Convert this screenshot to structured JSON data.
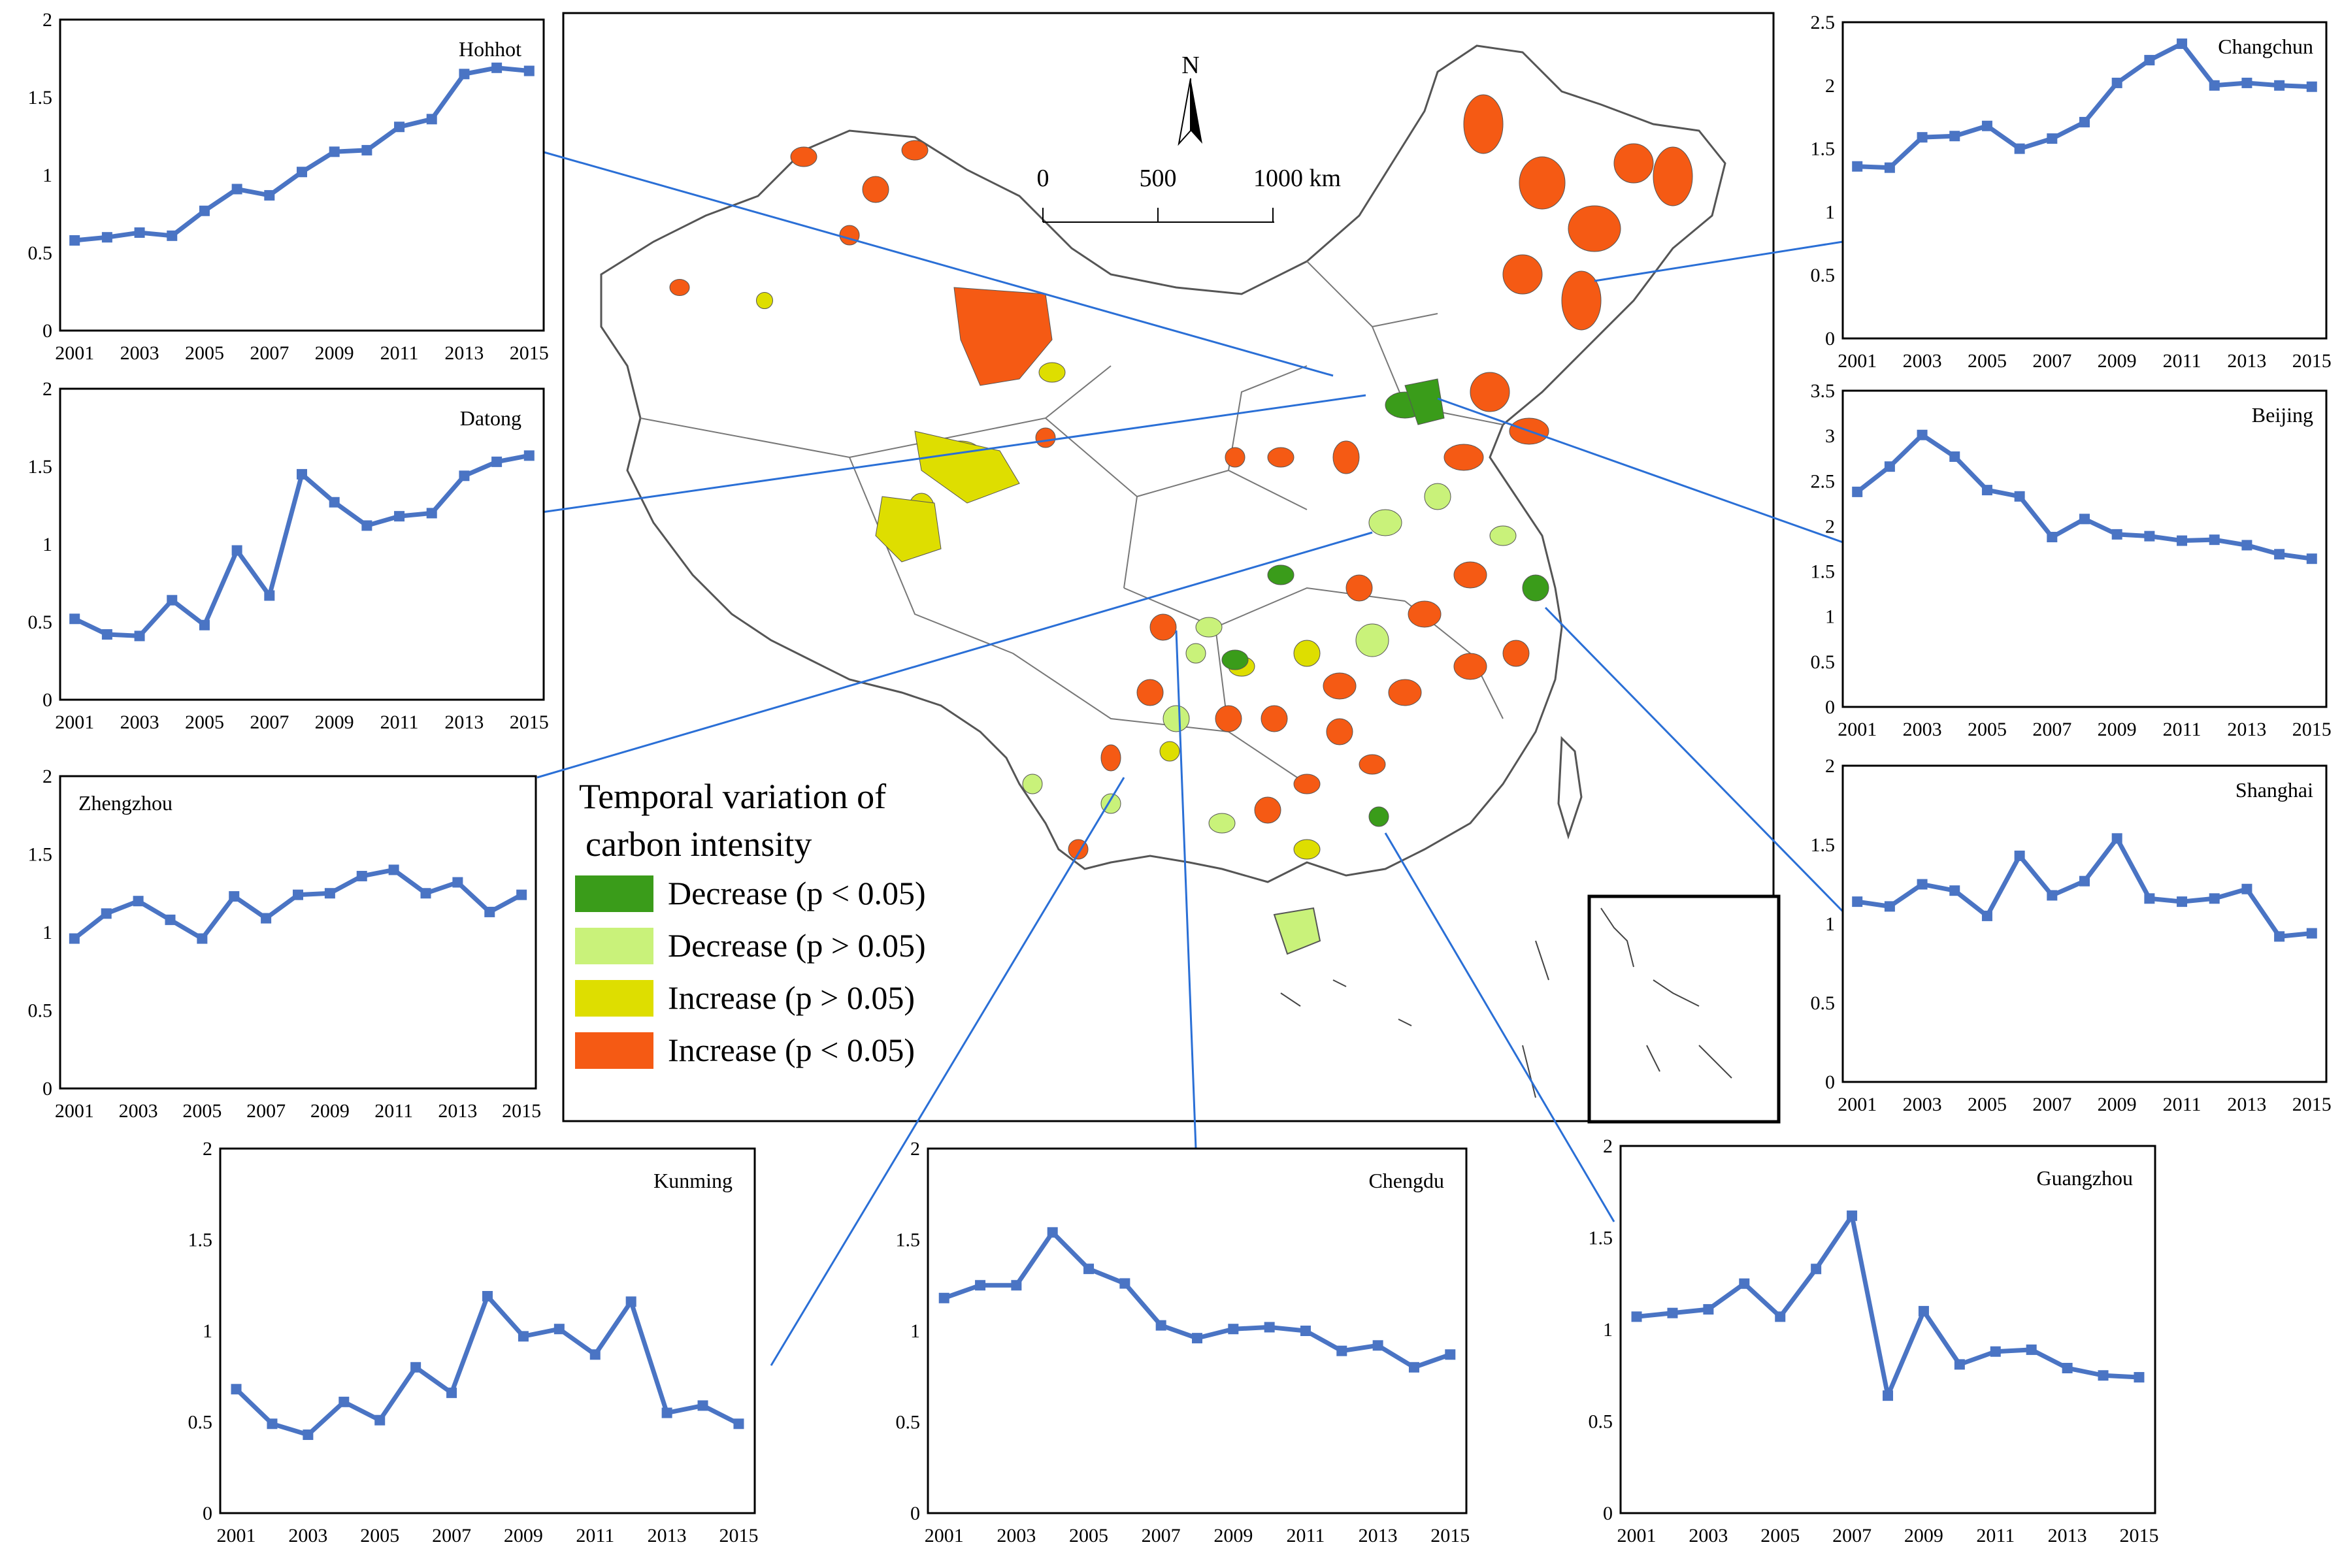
{
  "map": {
    "north_label": "N",
    "scale_labels": [
      "0",
      "500",
      "1000 km"
    ],
    "legend_title_line1": "Temporal variation of",
    "legend_title_line2": "carbon intensity",
    "legend_items": [
      {
        "label": "Decrease (p < 0.05)",
        "color": "#3a9c1a"
      },
      {
        "label": "Decrease (p > 0.05)",
        "color": "#c9f27a"
      },
      {
        "label": "Increase (p > 0.05)",
        "color": "#dede00"
      },
      {
        "label": "Increase (p < 0.05)",
        "color": "#f55a14"
      }
    ],
    "line_color": "#2a6fd6",
    "series_color": "#4a74c4"
  },
  "chart_data": [
    {
      "type": "line",
      "title": "Hohhot",
      "x": [
        2001,
        2002,
        2003,
        2004,
        2005,
        2006,
        2007,
        2008,
        2009,
        2010,
        2011,
        2012,
        2013,
        2014,
        2015
      ],
      "values": [
        0.58,
        0.6,
        0.63,
        0.61,
        0.77,
        0.91,
        0.87,
        1.02,
        1.15,
        1.16,
        1.31,
        1.36,
        1.65,
        1.69,
        1.67
      ],
      "ylim": [
        0,
        2
      ],
      "yticks": [
        "0",
        "0.5",
        "1",
        "1.5",
        "2"
      ],
      "xticks": [
        "2001",
        "2003",
        "2005",
        "2007",
        "2009",
        "2011",
        "2013",
        "2015"
      ]
    },
    {
      "type": "line",
      "title": "Datong",
      "x": [
        2001,
        2002,
        2003,
        2004,
        2005,
        2006,
        2007,
        2008,
        2009,
        2010,
        2011,
        2012,
        2013,
        2014,
        2015
      ],
      "values": [
        0.52,
        0.42,
        0.41,
        0.64,
        0.48,
        0.96,
        0.67,
        1.45,
        1.27,
        1.12,
        1.18,
        1.2,
        1.44,
        1.53,
        1.57
      ],
      "ylim": [
        0,
        2
      ],
      "yticks": [
        "0",
        "0.5",
        "1",
        "1.5",
        "2"
      ],
      "xticks": [
        "2001",
        "2003",
        "2005",
        "2007",
        "2009",
        "2011",
        "2013",
        "2015"
      ]
    },
    {
      "type": "line",
      "title": "Zhengzhou",
      "x": [
        2001,
        2002,
        2003,
        2004,
        2005,
        2006,
        2007,
        2008,
        2009,
        2010,
        2011,
        2012,
        2013,
        2014,
        2015
      ],
      "values": [
        0.96,
        1.12,
        1.2,
        1.08,
        0.96,
        1.23,
        1.09,
        1.24,
        1.25,
        1.36,
        1.4,
        1.25,
        1.32,
        1.13,
        1.24
      ],
      "ylim": [
        0,
        2
      ],
      "yticks": [
        "0",
        "0.5",
        "1",
        "1.5",
        "2"
      ],
      "xticks": [
        "2001",
        "2003",
        "2005",
        "2007",
        "2009",
        "2011",
        "2013",
        "2015"
      ]
    },
    {
      "type": "line",
      "title": "Kunming",
      "x": [
        2001,
        2002,
        2003,
        2004,
        2005,
        2006,
        2007,
        2008,
        2009,
        2010,
        2011,
        2012,
        2013,
        2014,
        2015
      ],
      "values": [
        0.68,
        0.49,
        0.43,
        0.61,
        0.51,
        0.8,
        0.66,
        1.19,
        0.97,
        1.01,
        0.87,
        1.16,
        0.55,
        0.59,
        0.49
      ],
      "ylim": [
        0,
        2
      ],
      "yticks": [
        "0",
        "0.5",
        "1",
        "1.5",
        "2"
      ],
      "xticks": [
        "2001",
        "2003",
        "2005",
        "2007",
        "2009",
        "2011",
        "2013",
        "2015"
      ]
    },
    {
      "type": "line",
      "title": "Chengdu",
      "x": [
        2001,
        2002,
        2003,
        2004,
        2005,
        2006,
        2007,
        2008,
        2009,
        2010,
        2011,
        2012,
        2013,
        2014,
        2015
      ],
      "values": [
        1.18,
        1.25,
        1.25,
        1.54,
        1.34,
        1.26,
        1.03,
        0.96,
        1.01,
        1.02,
        1.0,
        0.89,
        0.92,
        0.8,
        0.87
      ],
      "ylim": [
        0,
        2
      ],
      "yticks": [
        "0",
        "0.5",
        "1",
        "1.5",
        "2"
      ],
      "xticks": [
        "2001",
        "2003",
        "2005",
        "2007",
        "2009",
        "2011",
        "2013",
        "2015"
      ]
    },
    {
      "type": "line",
      "title": "Guangzhou",
      "x": [
        2001,
        2002,
        2003,
        2004,
        2005,
        2006,
        2007,
        2008,
        2009,
        2010,
        2011,
        2012,
        2013,
        2014,
        2015
      ],
      "values": [
        1.07,
        1.09,
        1.11,
        1.25,
        1.07,
        1.33,
        1.62,
        0.64,
        1.1,
        0.81,
        0.88,
        0.89,
        0.79,
        0.75,
        0.74
      ],
      "ylim": [
        0,
        2
      ],
      "yticks": [
        "0",
        "0.5",
        "1",
        "1.5",
        "2"
      ],
      "xticks": [
        "2001",
        "2003",
        "2005",
        "2007",
        "2009",
        "2011",
        "2013",
        "2015"
      ]
    },
    {
      "type": "line",
      "title": "Changchun",
      "x": [
        2001,
        2002,
        2003,
        2004,
        2005,
        2006,
        2007,
        2008,
        2009,
        2010,
        2011,
        2012,
        2013,
        2014,
        2015
      ],
      "values": [
        1.36,
        1.35,
        1.59,
        1.6,
        1.68,
        1.5,
        1.58,
        1.71,
        2.02,
        2.2,
        2.33,
        2.0,
        2.02,
        2.0,
        1.99
      ],
      "ylim": [
        0,
        2.5
      ],
      "yticks": [
        "0",
        "0.5",
        "1",
        "1.5",
        "2",
        "2.5"
      ],
      "xticks": [
        "2001",
        "2003",
        "2005",
        "2007",
        "2009",
        "2011",
        "2013",
        "2015"
      ]
    },
    {
      "type": "line",
      "title": "Beijing",
      "x": [
        2001,
        2002,
        2003,
        2004,
        2005,
        2006,
        2007,
        2008,
        2009,
        2010,
        2011,
        2012,
        2013,
        2014,
        2015
      ],
      "values": [
        2.38,
        2.66,
        3.01,
        2.77,
        2.4,
        2.33,
        1.88,
        2.08,
        1.91,
        1.89,
        1.84,
        1.85,
        1.79,
        1.69,
        1.64
      ],
      "ylim": [
        0,
        3.5
      ],
      "yticks": [
        "0",
        "0.5",
        "1",
        "1.5",
        "2",
        "2.5",
        "3",
        "3.5"
      ],
      "xticks": [
        "2001",
        "2003",
        "2005",
        "2007",
        "2009",
        "2011",
        "2013",
        "2015"
      ]
    },
    {
      "type": "line",
      "title": "Shanghai",
      "x": [
        2001,
        2002,
        2003,
        2004,
        2005,
        2006,
        2007,
        2008,
        2009,
        2010,
        2011,
        2012,
        2013,
        2014,
        2015
      ],
      "values": [
        1.14,
        1.11,
        1.25,
        1.21,
        1.05,
        1.43,
        1.18,
        1.27,
        1.54,
        1.16,
        1.14,
        1.16,
        1.22,
        0.92,
        0.94
      ],
      "ylim": [
        0,
        2
      ],
      "yticks": [
        "0",
        "0.5",
        "1",
        "1.5",
        "2"
      ],
      "xticks": [
        "2001",
        "2003",
        "2005",
        "2007",
        "2009",
        "2011",
        "2013",
        "2015"
      ]
    }
  ]
}
